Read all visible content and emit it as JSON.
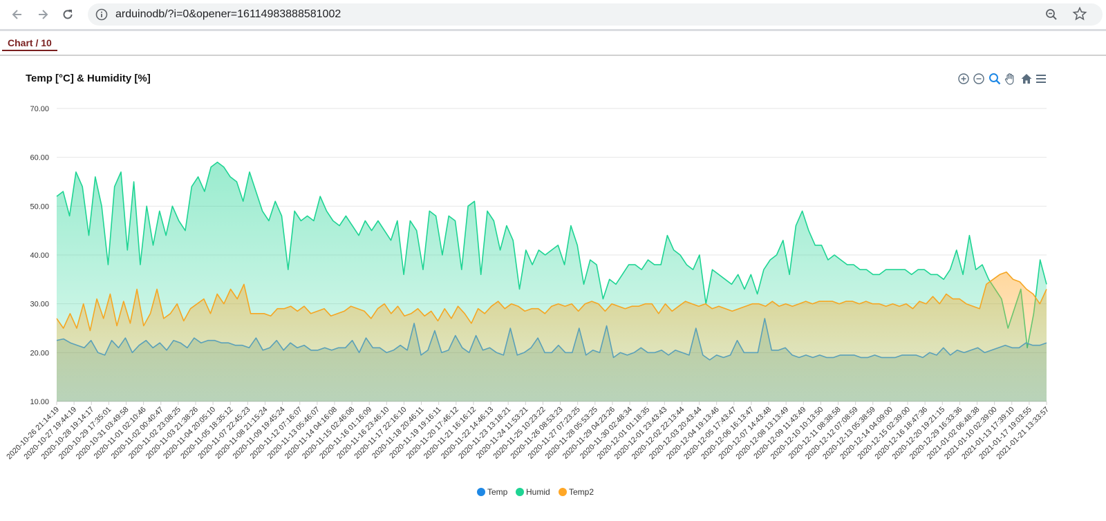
{
  "browser": {
    "url": "arduinodb/?i=0&opener=16114983888581002",
    "icons": [
      "back-icon",
      "forward-icon",
      "reload-icon",
      "info-icon",
      "zoom-icon",
      "star-icon"
    ]
  },
  "tab": {
    "label": "Chart / 10"
  },
  "chart_data": {
    "type": "area",
    "title": "Temp [°C] & Humidity [%]",
    "ylim": [
      10,
      70
    ],
    "yticks": [
      "70.00",
      "60.00",
      "50.00",
      "40.00",
      "30.00",
      "20.00",
      "10.00"
    ],
    "grid": true,
    "legend_placement": "bottom-center",
    "x_tick_labels": [
      "2020-10-26 21:14:19",
      "2020-10-27 19:44:19",
      "2020-10-28 19:14:17",
      "2020-10-29 17:35:01",
      "2020-10-31 03:49:58",
      "2020-11-01 02:10:46",
      "2020-11-02 00:40:47",
      "2020-11-02 23:08:25",
      "2020-11-03 21:38:26",
      "2020-11-04 20:05:10",
      "2020-11-05 18:35:12",
      "2020-11-07 22:45:23",
      "2020-11-08 21:15:24",
      "2020-11-09 19:45:24",
      "2020-11-12 07:16:07",
      "2020-11-13 05:46:07",
      "2020-11-14 04:16:08",
      "2020-11-15 02:46:08",
      "2020-11-16 01:16:09",
      "2020-11-16 23:46:10",
      "2020-11-17 22:16:10",
      "2020-11-18 20:46:11",
      "2020-11-19 19:16:11",
      "2020-11-20 17:46:12",
      "2020-11-21 16:16:12",
      "2020-11-22 14:46:13",
      "2020-11-23 13:18:21",
      "2020-11-24 11:53:21",
      "2020-11-25 10:23:22",
      "2020-11-26 08:53:23",
      "2020-11-27 07:23:25",
      "2020-11-28 05:53:25",
      "2020-11-29 04:23:26",
      "2020-11-30 02:48:34",
      "2020-12-01 01:18:35",
      "2020-12-01 23:43:43",
      "2020-12-02 22:13:44",
      "2020-12-03 20:43:44",
      "2020-12-04 19:13:46",
      "2020-12-05 17:43:47",
      "2020-12-06 16:13:47",
      "2020-12-07 14:43:48",
      "2020-12-08 13:13:49",
      "2020-12-09 11:43:49",
      "2020-12-10 10:13:50",
      "2020-12-11 08:38:58",
      "2020-12-12 07:08:59",
      "2020-12-13 05:38:59",
      "2020-12-14 04:09:00",
      "2020-12-15 02:39:00",
      "2020-12-16 18:47:36",
      "2020-12-20 19:21:15",
      "2020-12-29 16:33:36",
      "2021-01-02 06:48:38",
      "2021-01-10 02:39:00",
      "2021-01-13 17:39:10",
      "2021-01-17 19:03:55",
      "2021-01-21 13:33:57"
    ],
    "series": [
      {
        "name": "Temp",
        "color": "#1e88e5",
        "line_color": "#5aa0b8",
        "values": [
          22.5,
          22.8,
          22.0,
          21.5,
          21.0,
          22.5,
          20.0,
          19.5,
          22.5,
          21.0,
          23.0,
          20.0,
          21.5,
          22.5,
          21.0,
          22.0,
          20.5,
          22.5,
          22.0,
          21.0,
          23.0,
          22.0,
          22.5,
          22.5,
          22.0,
          22.0,
          21.5,
          21.5,
          21.0,
          23.0,
          20.5,
          21.0,
          22.5,
          20.5,
          22.0,
          21.0,
          21.5,
          20.5,
          20.5,
          21.0,
          20.5,
          21.0,
          21.0,
          22.5,
          20.0,
          23.0,
          21.0,
          21.0,
          20.0,
          20.5,
          21.5,
          20.5,
          26.0,
          19.5,
          20.5,
          24.5,
          20.0,
          20.5,
          23.5,
          21.0,
          20.0,
          23.5,
          20.5,
          21.0,
          20.0,
          19.5,
          25.0,
          19.5,
          20.0,
          21.0,
          23.0,
          20.0,
          20.0,
          21.5,
          20.0,
          20.0,
          25.0,
          19.5,
          20.5,
          20.0,
          25.5,
          19.0,
          20.0,
          19.5,
          20.0,
          21.0,
          20.0,
          20.0,
          20.5,
          19.5,
          20.5,
          20.0,
          19.5,
          25.0,
          19.5,
          18.5,
          19.5,
          19.0,
          19.5,
          22.5,
          20.0,
          20.0,
          20.0,
          27.0,
          20.5,
          20.5,
          21.0,
          19.5,
          19.0,
          19.5,
          19.0,
          19.5,
          19.0,
          19.0,
          19.5,
          19.5,
          19.5,
          19.0,
          19.0,
          19.5,
          19.0,
          19.0,
          19.0,
          19.5,
          19.5,
          19.5,
          19.0,
          20.0,
          19.5,
          21.0,
          19.5,
          20.5,
          20.0,
          20.5,
          21.0,
          20.0,
          20.5,
          21.0,
          21.5,
          21.0,
          21.0,
          22.0,
          21.5,
          21.5,
          22.0
        ]
      },
      {
        "name": "Humid",
        "color": "#1ed493",
        "line_color": "#1ed493",
        "values": [
          52.0,
          53.0,
          48.0,
          57.0,
          54.0,
          44.0,
          56.0,
          50.0,
          38.0,
          54.0,
          57.0,
          41.0,
          55.0,
          38.0,
          50.0,
          42.0,
          49.0,
          44.0,
          50.0,
          47.0,
          45.0,
          54.0,
          56.0,
          53.0,
          58.0,
          59.0,
          58.0,
          56.0,
          55.0,
          51.0,
          57.0,
          53.0,
          49.0,
          47.0,
          51.0,
          48.0,
          37.0,
          49.0,
          47.0,
          48.0,
          47.0,
          52.0,
          49.0,
          47.0,
          46.0,
          48.0,
          46.0,
          44.0,
          47.0,
          45.0,
          47.0,
          45.0,
          43.0,
          47.0,
          36.0,
          47.0,
          45.0,
          37.0,
          49.0,
          48.0,
          40.0,
          48.0,
          47.0,
          37.0,
          50.0,
          51.0,
          36.0,
          49.0,
          47.0,
          41.0,
          46.0,
          43.0,
          33.0,
          41.0,
          38.0,
          41.0,
          40.0,
          41.0,
          42.0,
          38.0,
          46.0,
          42.0,
          34.0,
          39.0,
          38.0,
          31.0,
          35.0,
          34.0,
          36.0,
          38.0,
          38.0,
          37.0,
          39.0,
          38.0,
          38.0,
          44.0,
          41.0,
          40.0,
          38.0,
          37.0,
          40.0,
          30.0,
          37.0,
          36.0,
          35.0,
          34.0,
          36.0,
          33.0,
          36.0,
          32.0,
          37.0,
          39.0,
          40.0,
          43.0,
          36.0,
          46.0,
          49.0,
          45.0,
          42.0,
          42.0,
          39.0,
          40.0,
          39.0,
          38.0,
          38.0,
          37.0,
          37.0,
          36.0,
          36.0,
          37.0,
          37.0,
          37.0,
          37.0,
          36.0,
          37.0,
          37.0,
          36.0,
          36.0,
          35.0,
          37.0,
          41.0,
          36.0,
          44.0,
          37.0,
          38.0,
          35.0,
          33.0,
          31.0,
          25.0,
          29.0,
          33.0,
          21.0,
          28.0,
          39.0,
          34.0
        ]
      },
      {
        "name": "Temp2",
        "color": "#ffa726",
        "line_color": "#f5a623",
        "values": [
          27.0,
          25.0,
          28.0,
          25.0,
          30.0,
          24.5,
          31.0,
          27.0,
          32.0,
          25.5,
          30.5,
          26.0,
          33.0,
          25.5,
          28.0,
          33.0,
          27.0,
          28.0,
          30.0,
          26.5,
          29.0,
          30.0,
          31.0,
          28.0,
          32.0,
          30.0,
          33.0,
          31.0,
          34.0,
          28.0,
          28.0,
          28.0,
          27.5,
          29.0,
          29.0,
          29.5,
          28.5,
          29.5,
          28.0,
          28.5,
          29.0,
          27.5,
          28.0,
          28.5,
          29.5,
          29.0,
          28.5,
          27.0,
          29.0,
          30.0,
          28.0,
          29.5,
          27.5,
          28.0,
          29.0,
          27.5,
          28.5,
          26.5,
          29.0,
          27.0,
          29.5,
          28.0,
          26.0,
          29.0,
          28.0,
          29.5,
          30.5,
          29.0,
          30.0,
          29.5,
          28.5,
          29.0,
          29.0,
          28.0,
          29.5,
          30.0,
          29.5,
          30.0,
          28.5,
          30.0,
          30.5,
          30.0,
          28.5,
          30.0,
          29.5,
          29.0,
          29.5,
          29.5,
          30.0,
          30.0,
          28.0,
          30.0,
          28.5,
          29.5,
          30.5,
          30.0,
          29.5,
          30.0,
          29.0,
          29.5,
          29.0,
          28.5,
          29.0,
          29.5,
          30.0,
          30.0,
          29.5,
          30.5,
          29.5,
          30.0,
          29.5,
          30.0,
          30.5,
          30.0,
          30.5,
          30.5,
          30.5,
          30.0,
          30.5,
          30.5,
          30.0,
          30.5,
          30.0,
          30.0,
          29.5,
          30.0,
          29.5,
          30.0,
          29.0,
          30.5,
          30.0,
          31.5,
          30.0,
          32.0,
          31.0,
          31.0,
          30.0,
          29.5,
          29.0,
          34.0,
          35.0,
          36.0,
          36.5,
          35.0,
          34.5,
          33.0,
          32.0,
          30.0,
          33.0
        ]
      }
    ]
  }
}
